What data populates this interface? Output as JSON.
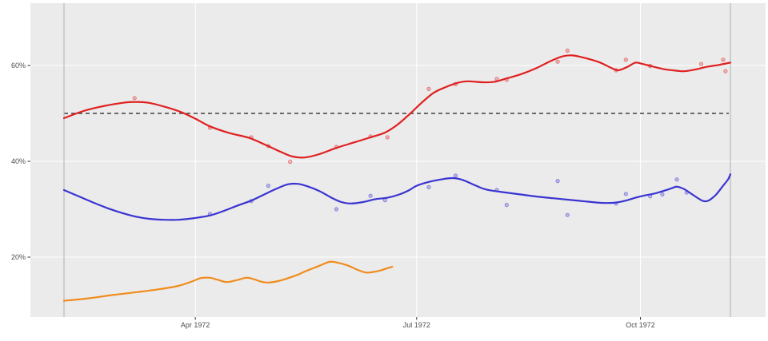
{
  "figure": {
    "background": "#ffffff",
    "panel_background": "#ebebeb",
    "grid_color": "#ffffff",
    "axis_tick_color": "#333333",
    "axis_label_color": "#4d4d4d"
  },
  "chart_data": {
    "type": "line",
    "subtype": "scatter-points-with-smoothed-trend-lines",
    "title": "",
    "xlabel": "",
    "ylabel": "",
    "legend": "none",
    "grid": "major-only-white-on-gray",
    "x_axis": {
      "unit": "day_of_year_1972",
      "domain": [
        38,
        312
      ],
      "ticks": [
        {
          "doy": 92,
          "label": "Apr 1972"
        },
        {
          "doy": 183,
          "label": "Jul 1972"
        },
        {
          "doy": 275,
          "label": "Oct 1972"
        }
      ]
    },
    "y_axis": {
      "unit": "percent",
      "domain": [
        7.5,
        72.8
      ],
      "ticks": [
        {
          "value": 20,
          "label": "20%"
        },
        {
          "value": 40,
          "label": "40%"
        },
        {
          "value": 60,
          "label": "60%"
        }
      ]
    },
    "reference_lines": [
      {
        "name": "fifty-percent-line",
        "orientation": "horizontal",
        "y": 50,
        "color": "#3f3f3f",
        "style": "dashed"
      },
      {
        "name": "range-start-line",
        "orientation": "vertical",
        "doy": 38,
        "color": "#b9b9b9",
        "style": "solid"
      },
      {
        "name": "range-end-line",
        "orientation": "vertical",
        "doy": 312,
        "color": "#b9b9b9",
        "style": "solid"
      }
    ],
    "series": [
      {
        "name": "red-series",
        "color": "#e02020",
        "trend": [
          [
            38,
            49.0
          ],
          [
            46,
            50.5
          ],
          [
            54,
            51.5
          ],
          [
            62,
            52.2
          ],
          [
            67,
            52.4
          ],
          [
            73,
            52.2
          ],
          [
            80,
            51.3
          ],
          [
            86,
            50.3
          ],
          [
            92,
            48.9
          ],
          [
            98,
            47.3
          ],
          [
            106,
            45.9
          ],
          [
            114,
            44.9
          ],
          [
            121,
            43.4
          ],
          [
            127,
            42.0
          ],
          [
            132,
            41.0
          ],
          [
            137,
            40.8
          ],
          [
            143,
            41.5
          ],
          [
            150,
            42.8
          ],
          [
            157,
            43.9
          ],
          [
            164,
            45.0
          ],
          [
            170,
            46.0
          ],
          [
            175,
            47.6
          ],
          [
            180,
            49.8
          ],
          [
            185,
            52.2
          ],
          [
            190,
            54.3
          ],
          [
            195,
            55.5
          ],
          [
            200,
            56.4
          ],
          [
            204,
            56.7
          ],
          [
            210,
            56.5
          ],
          [
            215,
            56.6
          ],
          [
            220,
            57.3
          ],
          [
            226,
            58.2
          ],
          [
            232,
            59.4
          ],
          [
            238,
            60.9
          ],
          [
            243,
            61.9
          ],
          [
            247,
            62.1
          ],
          [
            252,
            61.6
          ],
          [
            258,
            60.7
          ],
          [
            263,
            59.5
          ],
          [
            266,
            59.0
          ],
          [
            270,
            59.8
          ],
          [
            273,
            60.6
          ],
          [
            276,
            60.3
          ],
          [
            280,
            59.8
          ],
          [
            285,
            59.2
          ],
          [
            290,
            58.9
          ],
          [
            293,
            58.8
          ],
          [
            298,
            59.2
          ],
          [
            302,
            59.7
          ],
          [
            307,
            60.1
          ],
          [
            312,
            60.6
          ]
        ],
        "points": [
          [
            67,
            53.2
          ],
          [
            98,
            47.0
          ],
          [
            115,
            45.0
          ],
          [
            122,
            43.2
          ],
          [
            131,
            39.9
          ],
          [
            150,
            43.0
          ],
          [
            164,
            45.2
          ],
          [
            171,
            45.0
          ],
          [
            188,
            55.1
          ],
          [
            199,
            56.1
          ],
          [
            216,
            57.2
          ],
          [
            220,
            57.0
          ],
          [
            241,
            60.8
          ],
          [
            245,
            63.1
          ],
          [
            265,
            59.0
          ],
          [
            269,
            61.2
          ],
          [
            279,
            59.9
          ],
          [
            300,
            60.3
          ],
          [
            309,
            61.2
          ],
          [
            310,
            58.8
          ]
        ]
      },
      {
        "name": "blue-series",
        "color": "#3a34d2",
        "trend": [
          [
            38,
            34.0
          ],
          [
            44,
            32.7
          ],
          [
            50,
            31.4
          ],
          [
            56,
            30.2
          ],
          [
            62,
            29.2
          ],
          [
            68,
            28.4
          ],
          [
            73,
            28.0
          ],
          [
            79,
            27.8
          ],
          [
            85,
            27.8
          ],
          [
            91,
            28.1
          ],
          [
            98,
            28.7
          ],
          [
            104,
            29.7
          ],
          [
            109,
            30.7
          ],
          [
            115,
            31.8
          ],
          [
            120,
            33.0
          ],
          [
            125,
            34.2
          ],
          [
            130,
            35.2
          ],
          [
            134,
            35.3
          ],
          [
            138,
            34.8
          ],
          [
            143,
            33.8
          ],
          [
            148,
            32.4
          ],
          [
            152,
            31.5
          ],
          [
            156,
            31.2
          ],
          [
            161,
            31.5
          ],
          [
            166,
            32.1
          ],
          [
            171,
            32.4
          ],
          [
            176,
            33.1
          ],
          [
            180,
            34.0
          ],
          [
            183,
            34.9
          ],
          [
            188,
            35.7
          ],
          [
            194,
            36.3
          ],
          [
            198,
            36.5
          ],
          [
            202,
            36.1
          ],
          [
            207,
            35.0
          ],
          [
            211,
            34.2
          ],
          [
            215,
            33.8
          ],
          [
            221,
            33.4
          ],
          [
            227,
            33.0
          ],
          [
            233,
            32.6
          ],
          [
            239,
            32.3
          ],
          [
            245,
            32.0
          ],
          [
            251,
            31.7
          ],
          [
            257,
            31.4
          ],
          [
            261,
            31.3
          ],
          [
            265,
            31.4
          ],
          [
            269,
            31.8
          ],
          [
            273,
            32.4
          ],
          [
            277,
            32.9
          ],
          [
            281,
            33.3
          ],
          [
            285,
            33.9
          ],
          [
            288,
            34.4
          ],
          [
            290,
            34.7
          ],
          [
            293,
            34.2
          ],
          [
            296,
            33.2
          ],
          [
            299,
            32.2
          ],
          [
            301,
            31.7
          ],
          [
            303,
            31.8
          ],
          [
            306,
            33.0
          ],
          [
            309,
            34.9
          ],
          [
            311,
            36.2
          ],
          [
            312,
            37.3
          ]
        ],
        "points": [
          [
            98,
            29.0
          ],
          [
            115,
            31.7
          ],
          [
            122,
            34.9
          ],
          [
            150,
            30.0
          ],
          [
            164,
            32.8
          ],
          [
            170,
            31.9
          ],
          [
            188,
            34.6
          ],
          [
            199,
            37.0
          ],
          [
            216,
            34.0
          ],
          [
            220,
            30.9
          ],
          [
            241,
            35.9
          ],
          [
            245,
            28.8
          ],
          [
            265,
            31.2
          ],
          [
            269,
            33.2
          ],
          [
            279,
            32.7
          ],
          [
            284,
            33.1
          ],
          [
            290,
            36.2
          ],
          [
            294,
            33.5
          ]
        ]
      },
      {
        "name": "orange-series",
        "color": "#f08c1e",
        "trend": [
          [
            38,
            10.9
          ],
          [
            48,
            11.4
          ],
          [
            58,
            12.1
          ],
          [
            68,
            12.7
          ],
          [
            77,
            13.3
          ],
          [
            85,
            14.0
          ],
          [
            91,
            15.0
          ],
          [
            94,
            15.6
          ],
          [
            98,
            15.7
          ],
          [
            101,
            15.3
          ],
          [
            105,
            14.8
          ],
          [
            109,
            15.2
          ],
          [
            113,
            15.7
          ],
          [
            116,
            15.4
          ],
          [
            119,
            14.9
          ],
          [
            122,
            14.7
          ],
          [
            126,
            15.0
          ],
          [
            130,
            15.6
          ],
          [
            134,
            16.3
          ],
          [
            137,
            17.0
          ],
          [
            140,
            17.6
          ],
          [
            143,
            18.2
          ],
          [
            147,
            19.0
          ],
          [
            150,
            18.9
          ],
          [
            155,
            18.2
          ],
          [
            158,
            17.5
          ],
          [
            162,
            16.8
          ],
          [
            165,
            16.9
          ],
          [
            168,
            17.2
          ],
          [
            171,
            17.7
          ],
          [
            173,
            18.0
          ]
        ],
        "points": []
      }
    ]
  }
}
